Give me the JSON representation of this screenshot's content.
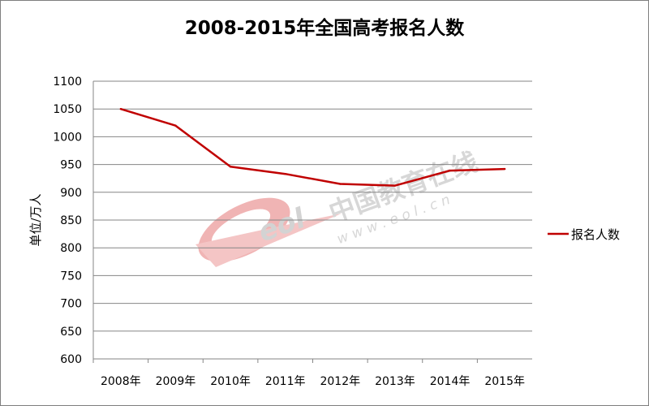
{
  "chart_data": {
    "type": "line",
    "title": "2008-2015年全国高考报名人数",
    "ylabel": "单位/万人",
    "xlabel": "",
    "categories": [
      "2008年",
      "2009年",
      "2010年",
      "2011年",
      "2012年",
      "2013年",
      "2014年",
      "2015年"
    ],
    "series": [
      {
        "name": "报名人数",
        "values": [
          1050,
          1020,
          946,
          933,
          915,
          912,
          939,
          942
        ]
      }
    ],
    "ylim": [
      600,
      1100
    ],
    "yticks": [
      "1100",
      "1050",
      "1000",
      "950",
      "900",
      "850",
      "800",
      "750",
      "700",
      "650",
      "600"
    ],
    "grid": true,
    "legend": "right",
    "series_color": "#c00000"
  },
  "watermark": {
    "logo_text": "eol",
    "name": "中国教育在线",
    "url": "w w w . e o l . c n"
  }
}
